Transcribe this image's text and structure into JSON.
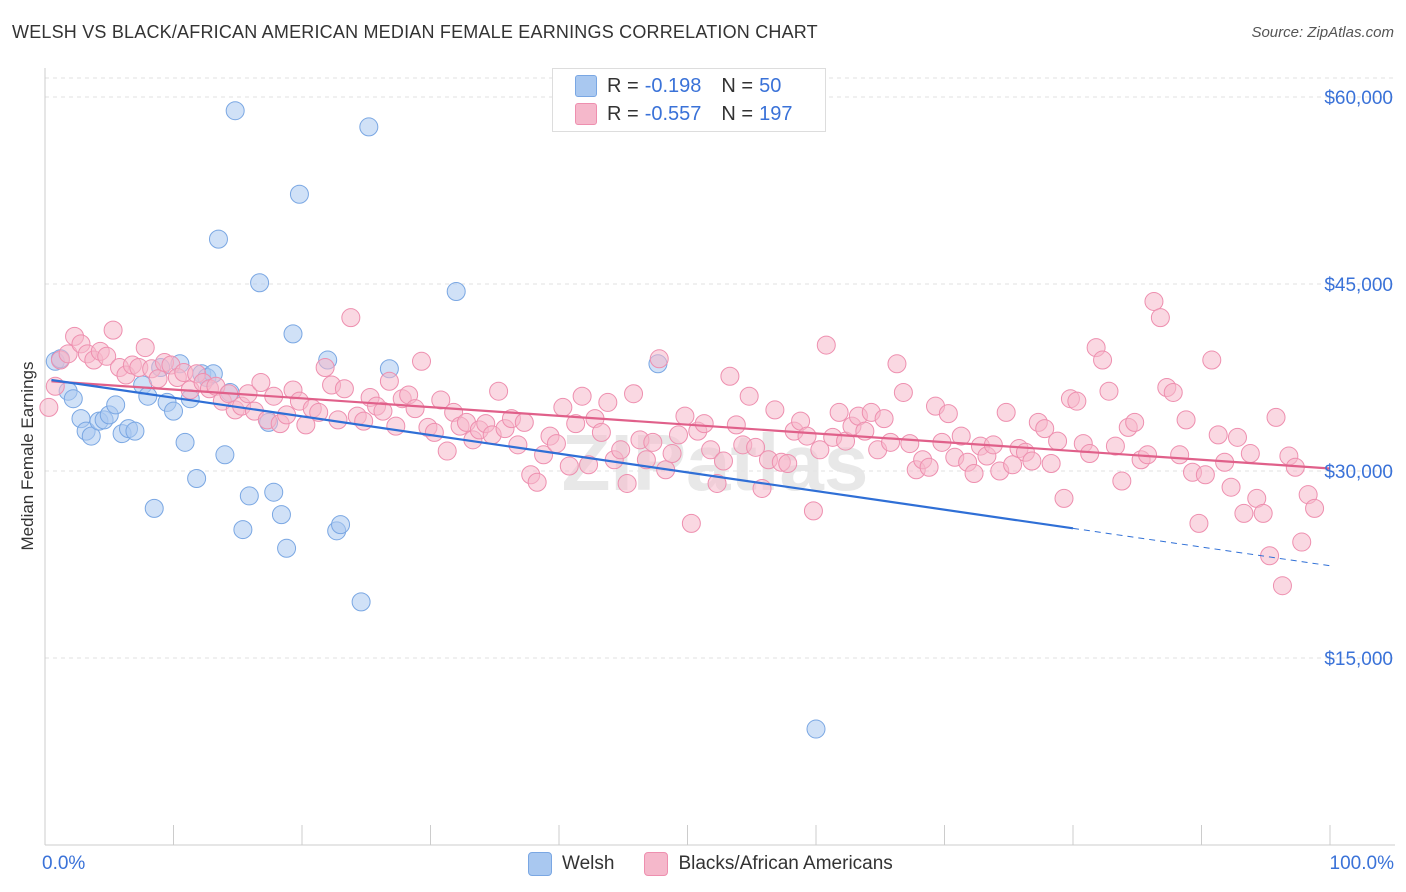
{
  "header": {
    "title": "WELSH VS BLACK/AFRICAN AMERICAN MEDIAN FEMALE EARNINGS CORRELATION CHART",
    "source": "Source: ZipAtlas.com"
  },
  "watermark": "ZIPatlas",
  "legend": {
    "rows": [
      {
        "r_label": "R =",
        "r_value": "-0.198",
        "n_label": "N =",
        "n_value": "50",
        "color": "#a9c8f0"
      },
      {
        "r_label": "R =",
        "r_value": "-0.557",
        "n_label": "N =",
        "n_value": "197",
        "color": "#f5b8cb"
      }
    ]
  },
  "bottom_legend": [
    {
      "label": "Welsh",
      "color": "#a9c8f0"
    },
    {
      "label": "Blacks/African Americans",
      "color": "#f5b8cb"
    }
  ],
  "chart_data": {
    "type": "scatter",
    "ylabel": "Median Female Earnings",
    "xlim": [
      0,
      100
    ],
    "ylim": [
      0,
      62000
    ],
    "x_tick_labels": [
      "0.0%",
      "100.0%"
    ],
    "y_ticks": [
      15000,
      30000,
      45000,
      60000
    ],
    "y_tick_labels": [
      "$15,000",
      "$30,000",
      "$45,000",
      "$60,000"
    ],
    "grid": true,
    "series": [
      {
        "name": "Welsh",
        "color": "#a9c8f0",
        "stroke": "#7aa7e3",
        "points": [
          [
            0.8,
            38800
          ],
          [
            1.2,
            39000
          ],
          [
            1.8,
            36400
          ],
          [
            2.2,
            35800
          ],
          [
            2.8,
            34200
          ],
          [
            3.2,
            33200
          ],
          [
            3.6,
            32800
          ],
          [
            4.2,
            34000
          ],
          [
            4.6,
            34100
          ],
          [
            5.0,
            34500
          ],
          [
            5.5,
            35300
          ],
          [
            6.0,
            33000
          ],
          [
            6.5,
            33400
          ],
          [
            7.0,
            33200
          ],
          [
            7.6,
            36900
          ],
          [
            8.0,
            36000
          ],
          [
            8.5,
            27000
          ],
          [
            9.0,
            38300
          ],
          [
            9.5,
            35500
          ],
          [
            10.0,
            34800
          ],
          [
            10.5,
            38600
          ],
          [
            10.9,
            32300
          ],
          [
            11.3,
            35800
          ],
          [
            11.8,
            29400
          ],
          [
            12.2,
            37800
          ],
          [
            12.6,
            37500
          ],
          [
            13.1,
            37800
          ],
          [
            13.5,
            48600
          ],
          [
            14.0,
            31300
          ],
          [
            14.4,
            36300
          ],
          [
            14.8,
            58900
          ],
          [
            15.4,
            25300
          ],
          [
            15.9,
            28000
          ],
          [
            16.7,
            45100
          ],
          [
            17.4,
            33900
          ],
          [
            17.8,
            28300
          ],
          [
            18.4,
            26500
          ],
          [
            18.8,
            23800
          ],
          [
            19.3,
            41000
          ],
          [
            19.8,
            52200
          ],
          [
            22.0,
            38900
          ],
          [
            22.7,
            25200
          ],
          [
            23.0,
            25700
          ],
          [
            24.6,
            19500
          ],
          [
            25.2,
            57600
          ],
          [
            26.8,
            38200
          ],
          [
            32.0,
            44400
          ],
          [
            47.7,
            38600
          ],
          [
            60.0,
            9300
          ]
        ],
        "trend": {
          "x": [
            0.5,
            80
          ],
          "y": [
            37300,
            25400
          ]
        },
        "trend_dashed": {
          "x": [
            80,
            100
          ],
          "y": [
            25400,
            22400
          ]
        }
      },
      {
        "name": "Blacks/African Americans",
        "color": "#f5b8cb",
        "stroke": "#ee8faf",
        "points": [
          [
            0.3,
            35100
          ],
          [
            0.8,
            36800
          ],
          [
            1.2,
            38900
          ],
          [
            1.8,
            39400
          ],
          [
            2.3,
            40800
          ],
          [
            2.8,
            40200
          ],
          [
            3.3,
            39400
          ],
          [
            3.8,
            38900
          ],
          [
            4.3,
            39600
          ],
          [
            4.8,
            39200
          ],
          [
            5.3,
            41300
          ],
          [
            5.8,
            38300
          ],
          [
            6.3,
            37700
          ],
          [
            6.8,
            38500
          ],
          [
            7.3,
            38300
          ],
          [
            7.8,
            39900
          ],
          [
            8.3,
            38200
          ],
          [
            8.8,
            37400
          ],
          [
            9.3,
            38700
          ],
          [
            9.8,
            38500
          ],
          [
            10.3,
            37500
          ],
          [
            10.8,
            37900
          ],
          [
            11.3,
            36500
          ],
          [
            11.8,
            37800
          ],
          [
            12.3,
            37100
          ],
          [
            12.8,
            36600
          ],
          [
            13.3,
            36800
          ],
          [
            13.8,
            35600
          ],
          [
            14.3,
            36200
          ],
          [
            14.8,
            34900
          ],
          [
            15.3,
            35200
          ],
          [
            15.8,
            36200
          ],
          [
            16.3,
            34800
          ],
          [
            16.8,
            37100
          ],
          [
            17.3,
            34100
          ],
          [
            17.8,
            36000
          ],
          [
            18.3,
            33800
          ],
          [
            18.8,
            34500
          ],
          [
            19.3,
            36500
          ],
          [
            19.8,
            35600
          ],
          [
            20.3,
            33700
          ],
          [
            20.8,
            35000
          ],
          [
            21.3,
            34700
          ],
          [
            21.8,
            38300
          ],
          [
            22.3,
            36900
          ],
          [
            22.8,
            34100
          ],
          [
            23.3,
            36600
          ],
          [
            23.8,
            42300
          ],
          [
            24.3,
            34400
          ],
          [
            24.8,
            34000
          ],
          [
            25.3,
            35900
          ],
          [
            25.8,
            35200
          ],
          [
            26.3,
            34800
          ],
          [
            26.8,
            37200
          ],
          [
            27.3,
            33600
          ],
          [
            27.8,
            35800
          ],
          [
            28.3,
            36100
          ],
          [
            28.8,
            35000
          ],
          [
            29.3,
            38800
          ],
          [
            29.8,
            33500
          ],
          [
            30.3,
            33100
          ],
          [
            30.8,
            35700
          ],
          [
            31.3,
            31600
          ],
          [
            31.8,
            34700
          ],
          [
            32.3,
            33600
          ],
          [
            32.8,
            33900
          ],
          [
            33.3,
            32500
          ],
          [
            33.8,
            33300
          ],
          [
            34.3,
            33800
          ],
          [
            34.8,
            32900
          ],
          [
            35.3,
            36400
          ],
          [
            35.8,
            33400
          ],
          [
            36.3,
            34200
          ],
          [
            36.8,
            32100
          ],
          [
            37.3,
            33900
          ],
          [
            37.8,
            29700
          ],
          [
            38.3,
            29100
          ],
          [
            38.8,
            31300
          ],
          [
            39.3,
            32800
          ],
          [
            39.8,
            32200
          ],
          [
            40.3,
            35100
          ],
          [
            40.8,
            30400
          ],
          [
            41.3,
            33800
          ],
          [
            41.8,
            36000
          ],
          [
            42.3,
            30500
          ],
          [
            42.8,
            34200
          ],
          [
            43.3,
            33100
          ],
          [
            43.8,
            35500
          ],
          [
            44.3,
            30900
          ],
          [
            44.8,
            31700
          ],
          [
            45.3,
            29000
          ],
          [
            45.8,
            36200
          ],
          [
            46.3,
            32500
          ],
          [
            46.8,
            30900
          ],
          [
            47.3,
            32300
          ],
          [
            47.8,
            39000
          ],
          [
            48.3,
            30100
          ],
          [
            48.8,
            31400
          ],
          [
            49.3,
            32900
          ],
          [
            49.8,
            34400
          ],
          [
            50.3,
            25800
          ],
          [
            50.8,
            33200
          ],
          [
            51.3,
            33800
          ],
          [
            51.8,
            31700
          ],
          [
            52.3,
            29000
          ],
          [
            52.8,
            30800
          ],
          [
            53.3,
            37600
          ],
          [
            53.8,
            33700
          ],
          [
            54.3,
            32100
          ],
          [
            54.8,
            36000
          ],
          [
            55.3,
            31900
          ],
          [
            55.8,
            28600
          ],
          [
            56.3,
            30900
          ],
          [
            56.8,
            34900
          ],
          [
            57.3,
            30700
          ],
          [
            57.8,
            30600
          ],
          [
            58.3,
            33200
          ],
          [
            58.8,
            34000
          ],
          [
            59.3,
            32800
          ],
          [
            59.8,
            26800
          ],
          [
            60.3,
            31700
          ],
          [
            60.8,
            40100
          ],
          [
            61.3,
            32700
          ],
          [
            61.8,
            34700
          ],
          [
            62.3,
            32400
          ],
          [
            62.8,
            33600
          ],
          [
            63.3,
            34400
          ],
          [
            63.8,
            33200
          ],
          [
            64.3,
            34700
          ],
          [
            64.8,
            31700
          ],
          [
            65.3,
            34200
          ],
          [
            65.8,
            32300
          ],
          [
            66.3,
            38600
          ],
          [
            66.8,
            36300
          ],
          [
            67.3,
            32200
          ],
          [
            67.8,
            30100
          ],
          [
            68.3,
            30900
          ],
          [
            68.8,
            30300
          ],
          [
            69.3,
            35200
          ],
          [
            69.8,
            32300
          ],
          [
            70.3,
            34600
          ],
          [
            70.8,
            31100
          ],
          [
            71.3,
            32800
          ],
          [
            71.8,
            30700
          ],
          [
            72.3,
            29800
          ],
          [
            72.8,
            32000
          ],
          [
            73.3,
            31200
          ],
          [
            73.8,
            32100
          ],
          [
            74.3,
            30000
          ],
          [
            74.8,
            34700
          ],
          [
            75.3,
            30500
          ],
          [
            75.8,
            31800
          ],
          [
            76.3,
            31500
          ],
          [
            76.8,
            30800
          ],
          [
            77.3,
            33900
          ],
          [
            77.8,
            33400
          ],
          [
            78.3,
            30600
          ],
          [
            78.8,
            32400
          ],
          [
            79.3,
            27800
          ],
          [
            79.8,
            35800
          ],
          [
            80.3,
            35600
          ],
          [
            80.8,
            32200
          ],
          [
            81.3,
            31400
          ],
          [
            81.8,
            39900
          ],
          [
            82.3,
            38900
          ],
          [
            82.8,
            36400
          ],
          [
            83.3,
            32000
          ],
          [
            83.8,
            29200
          ],
          [
            84.3,
            33500
          ],
          [
            84.8,
            33900
          ],
          [
            85.3,
            30900
          ],
          [
            85.8,
            31300
          ],
          [
            86.3,
            43600
          ],
          [
            86.8,
            42300
          ],
          [
            87.3,
            36700
          ],
          [
            87.8,
            36300
          ],
          [
            88.3,
            31300
          ],
          [
            88.8,
            34100
          ],
          [
            89.3,
            29900
          ],
          [
            89.8,
            25800
          ],
          [
            90.3,
            29700
          ],
          [
            90.8,
            38900
          ],
          [
            91.3,
            32900
          ],
          [
            91.8,
            30700
          ],
          [
            92.3,
            28700
          ],
          [
            92.8,
            32700
          ],
          [
            93.3,
            26600
          ],
          [
            93.8,
            31400
          ],
          [
            94.3,
            27800
          ],
          [
            94.8,
            26600
          ],
          [
            95.3,
            23200
          ],
          [
            95.8,
            34300
          ],
          [
            96.3,
            20800
          ],
          [
            96.8,
            31200
          ],
          [
            97.3,
            30300
          ],
          [
            97.8,
            24300
          ],
          [
            98.3,
            28100
          ],
          [
            98.8,
            27000
          ]
        ],
        "trend": {
          "x": [
            0.5,
            100
          ],
          "y": [
            37200,
            30200
          ]
        }
      }
    ]
  }
}
